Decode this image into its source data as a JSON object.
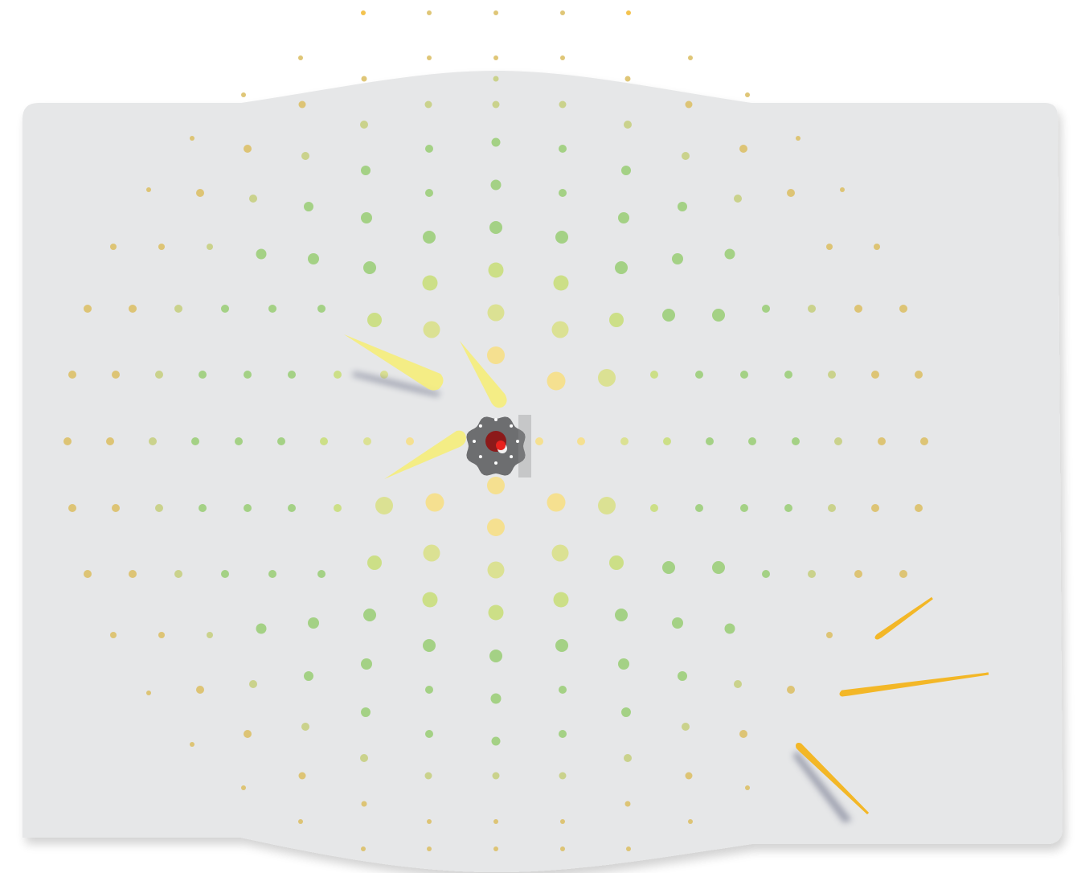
{
  "game": {
    "board": {
      "color": "#e6e7e8",
      "shape": "rounded-rectangle-with-wavy-top-and-bottom"
    },
    "dot_field": {
      "pattern": "radial-grid",
      "rings": 10,
      "colors": {
        "inner": "#f6df86",
        "middle": "#c9de7c",
        "mid_green": "#9cce7a",
        "outer": "#f3bd3c"
      }
    },
    "player": {
      "icon": "spiky-gear-disc",
      "body_color": "#6d6e70",
      "core_color": "#8c1a1a",
      "accent_color": "#e8211d",
      "peg_count": 8
    },
    "beams": {
      "color": "#f5ed7a",
      "count": 3
    },
    "projectiles": {
      "color": "#f3b727",
      "count": 3
    }
  }
}
